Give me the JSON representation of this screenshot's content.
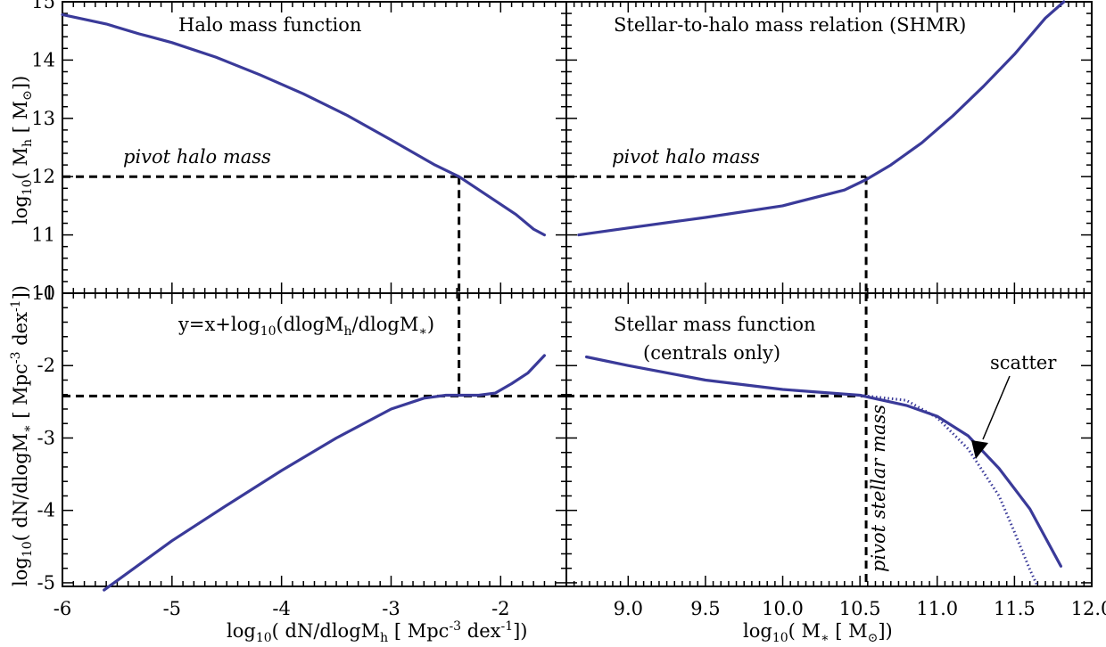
{
  "chart_data": [
    {
      "panel": "top-left",
      "type": "line",
      "title": "Halo mass function",
      "xlim": [
        -6,
        -1.4
      ],
      "ylim": [
        10,
        15
      ],
      "ylabel": "log10( Mh [ M⊙])",
      "xticks": [
        -6,
        -5,
        -4,
        -3,
        -2
      ],
      "yticks": [
        10,
        11,
        12,
        13,
        14,
        15
      ],
      "annotation": "pivot halo mass",
      "pivot": {
        "x": -2.38,
        "y": 12.0
      },
      "series": [
        {
          "style": "solid",
          "x": [
            -6.0,
            -5.6,
            -5.3,
            -5.2,
            -5.0,
            -4.6,
            -4.2,
            -3.8,
            -3.4,
            -3.0,
            -2.6,
            -2.38,
            -2.1,
            -1.86,
            -1.7,
            -1.6
          ],
          "y": [
            14.78,
            14.62,
            14.45,
            14.4,
            14.3,
            14.05,
            13.75,
            13.42,
            13.05,
            12.63,
            12.2,
            12.0,
            11.65,
            11.35,
            11.1,
            11.0
          ]
        }
      ]
    },
    {
      "panel": "top-right",
      "type": "line",
      "title": "Stellar-to-halo mass relation (SHMR)",
      "xlim": [
        8.6,
        12.0
      ],
      "ylim": [
        10,
        15
      ],
      "annotation": "pivot halo mass",
      "pivot": {
        "x": 10.54,
        "y": 12.0
      },
      "series": [
        {
          "style": "solid",
          "x": [
            8.68,
            9.0,
            9.5,
            10.0,
            10.4,
            10.54,
            10.7,
            10.9,
            11.1,
            11.3,
            11.5,
            11.7,
            11.82
          ],
          "y": [
            11.0,
            11.12,
            11.3,
            11.5,
            11.77,
            11.95,
            12.2,
            12.58,
            13.04,
            13.55,
            14.1,
            14.72,
            15.1
          ]
        }
      ]
    },
    {
      "panel": "bottom-left",
      "type": "line",
      "title": "y=x+log10(dlogMh/dlogM*)",
      "xlim": [
        -6,
        -1.4
      ],
      "ylim": [
        -5.05,
        -1.0
      ],
      "xlabel": "log10( dN/dlogMh [ Mpc-3 dex-1])",
      "ylabel": "log10( dN/dlogM* [ Mpc-3 dex-1])",
      "xticks": [
        -6,
        -5,
        -4,
        -3,
        -2
      ],
      "yticks": [
        -5,
        -4,
        -3,
        -2,
        -1
      ],
      "pivot": {
        "x": -2.38,
        "y": -2.42
      },
      "series": [
        {
          "style": "solid",
          "x": [
            -5.62,
            -5.0,
            -4.5,
            -4.0,
            -3.5,
            -3.0,
            -2.7,
            -2.5,
            -2.38,
            -2.2,
            -2.05,
            -1.9,
            -1.75,
            -1.6
          ],
          "y": [
            -5.1,
            -4.42,
            -3.93,
            -3.45,
            -3.0,
            -2.6,
            -2.45,
            -2.41,
            -2.41,
            -2.41,
            -2.38,
            -2.25,
            -2.1,
            -1.86
          ]
        }
      ]
    },
    {
      "panel": "bottom-right",
      "type": "line",
      "title": "Stellar mass function",
      "subtitle": "(centrals only)",
      "xlim": [
        8.6,
        12.0
      ],
      "ylim": [
        -5.05,
        -1.0
      ],
      "xlabel": "log10( M* [ M⊙])",
      "xticks": [
        9.0,
        9.5,
        10.0,
        10.5,
        11.0,
        11.5,
        12.0
      ],
      "annotation": "pivot stellar mass",
      "arrow_label": "scatter",
      "pivot": {
        "x": 10.54,
        "y": -2.42
      },
      "series": [
        {
          "style": "solid",
          "x": [
            8.73,
            9.0,
            9.5,
            10.0,
            10.5,
            10.8,
            11.0,
            11.2,
            11.4,
            11.6,
            11.8
          ],
          "y": [
            -1.88,
            -2.0,
            -2.2,
            -2.33,
            -2.41,
            -2.55,
            -2.7,
            -2.97,
            -3.42,
            -3.98,
            -4.77
          ]
        },
        {
          "style": "dotted",
          "x": [
            10.5,
            10.8,
            11.0,
            11.2,
            11.4,
            11.5,
            11.6,
            11.65
          ],
          "y": [
            -2.41,
            -2.48,
            -2.72,
            -3.15,
            -3.8,
            -4.3,
            -4.82,
            -5.05
          ]
        }
      ]
    }
  ]
}
